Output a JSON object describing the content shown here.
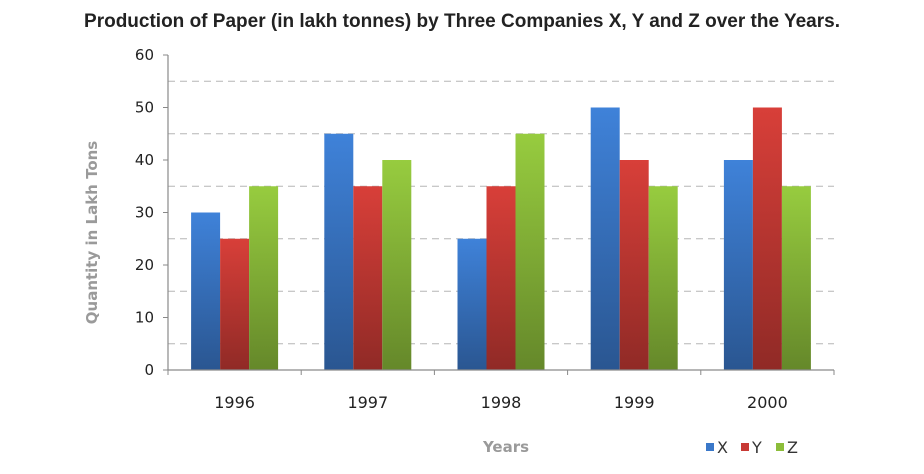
{
  "chart_data": {
    "type": "bar",
    "title": "Production of Paper (in lakh tonnes) by Three Companies X, Y and Z over the Years.",
    "xlabel": "Years",
    "ylabel": "Quantity in Lakh Tons",
    "categories": [
      "1996",
      "1997",
      "1998",
      "1999",
      "2000"
    ],
    "series": [
      {
        "name": "X",
        "values": [
          30,
          45,
          25,
          50,
          40
        ],
        "color": "#3a78c9"
      },
      {
        "name": "Y",
        "values": [
          25,
          35,
          35,
          40,
          50
        ],
        "color": "#c83a35"
      },
      {
        "name": "Z",
        "values": [
          35,
          40,
          45,
          35,
          35
        ],
        "color": "#8cbd3a"
      }
    ],
    "ylim": [
      0,
      60
    ],
    "yticks": [
      0,
      10,
      20,
      30,
      40,
      50,
      60
    ],
    "grid": true,
    "legend_position": "bottom-right"
  }
}
